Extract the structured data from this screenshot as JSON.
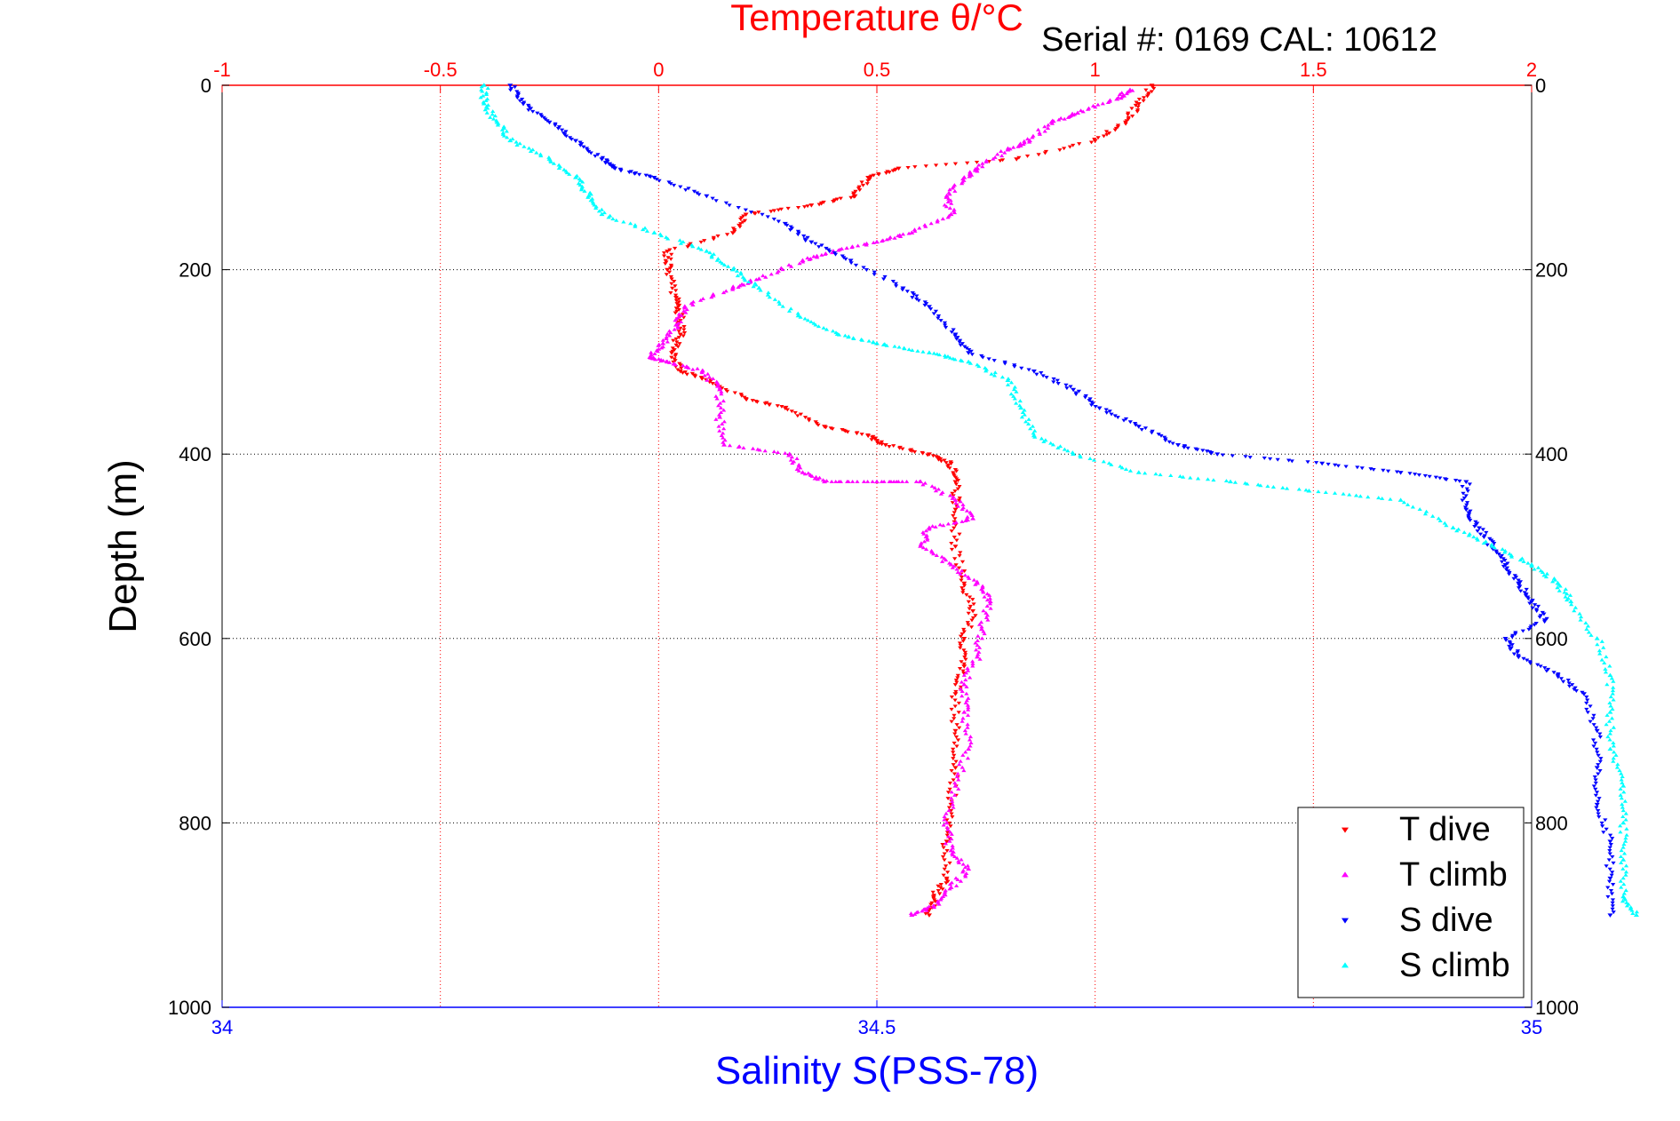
{
  "chart_data": {
    "type": "scatter",
    "title_top": "Temperature θ/°C",
    "annotation": "Serial #: 0169 CAL: 10612",
    "xlabel": "Salinity S(PSS-78)",
    "ylabel": "Depth (m)",
    "temperature_axis": {
      "range": [
        -1,
        2
      ],
      "ticks": [
        -1,
        -0.5,
        0,
        0.5,
        1,
        1.5,
        2
      ],
      "tick_labels": [
        "-1",
        "-0.5",
        "0",
        "0.5",
        "1",
        "1.5",
        "2"
      ]
    },
    "salinity_axis": {
      "range": [
        34,
        35
      ],
      "ticks": [
        34,
        34.5,
        35
      ],
      "tick_labels": [
        "34",
        "34.5",
        "35"
      ]
    },
    "depth_axis": {
      "range": [
        0,
        1000
      ],
      "ticks": [
        0,
        200,
        400,
        600,
        800,
        1000
      ],
      "tick_labels": [
        "0",
        "200",
        "400",
        "600",
        "800",
        "1000"
      ],
      "reversed": true
    },
    "grid": true,
    "legend_position": "bottom-right",
    "colors": {
      "temperature_axis": "#ff0000",
      "salinity_axis": "#0000ff",
      "t_dive": "#ff0000",
      "t_climb": "#ff00ff",
      "s_dive": "#0000ff",
      "s_climb": "#00ffff"
    },
    "series": [
      {
        "name": "T dive",
        "axis": "temperature",
        "marker": "triangle-down",
        "color": "#ff0000",
        "points": [
          [
            1.13,
            0
          ],
          [
            1.1,
            20
          ],
          [
            1.07,
            40
          ],
          [
            1.0,
            60
          ],
          [
            0.82,
            80
          ],
          [
            0.55,
            90
          ],
          [
            0.48,
            100
          ],
          [
            0.45,
            120
          ],
          [
            0.35,
            130
          ],
          [
            0.2,
            140
          ],
          [
            0.17,
            160
          ],
          [
            0.02,
            180
          ],
          [
            0.02,
            200
          ],
          [
            0.04,
            230
          ],
          [
            0.05,
            250
          ],
          [
            0.05,
            270
          ],
          [
            0.03,
            290
          ],
          [
            0.05,
            310
          ],
          [
            0.12,
            320
          ],
          [
            0.2,
            340
          ],
          [
            0.29,
            350
          ],
          [
            0.38,
            370
          ],
          [
            0.48,
            380
          ],
          [
            0.52,
            390
          ],
          [
            0.62,
            400
          ],
          [
            0.67,
            410
          ],
          [
            0.68,
            430
          ],
          [
            0.68,
            460
          ],
          [
            0.68,
            500
          ],
          [
            0.7,
            540
          ],
          [
            0.72,
            570
          ],
          [
            0.7,
            600
          ],
          [
            0.7,
            630
          ],
          [
            0.68,
            660
          ],
          [
            0.68,
            700
          ],
          [
            0.68,
            740
          ],
          [
            0.67,
            780
          ],
          [
            0.66,
            820
          ],
          [
            0.66,
            860
          ],
          [
            0.63,
            880
          ],
          [
            0.62,
            900
          ]
        ]
      },
      {
        "name": "T climb",
        "axis": "temperature",
        "marker": "triangle-up",
        "color": "#ff00ff",
        "points": [
          [
            1.08,
            5
          ],
          [
            1.05,
            15
          ],
          [
            0.96,
            30
          ],
          [
            0.9,
            40
          ],
          [
            0.85,
            60
          ],
          [
            0.8,
            70
          ],
          [
            0.73,
            90
          ],
          [
            0.7,
            100
          ],
          [
            0.66,
            120
          ],
          [
            0.67,
            140
          ],
          [
            0.58,
            160
          ],
          [
            0.5,
            170
          ],
          [
            0.4,
            180
          ],
          [
            0.33,
            190
          ],
          [
            0.23,
            210
          ],
          [
            0.17,
            220
          ],
          [
            0.06,
            240
          ],
          [
            0.04,
            260
          ],
          [
            0.01,
            280
          ],
          [
            -0.02,
            295
          ],
          [
            0.02,
            300
          ],
          [
            0.1,
            310
          ],
          [
            0.14,
            330
          ],
          [
            0.14,
            360
          ],
          [
            0.15,
            390
          ],
          [
            0.3,
            400
          ],
          [
            0.33,
            420
          ],
          [
            0.38,
            430
          ],
          [
            0.5,
            430
          ],
          [
            0.6,
            430
          ],
          [
            0.68,
            450
          ],
          [
            0.72,
            470
          ],
          [
            0.62,
            480
          ],
          [
            0.6,
            500
          ],
          [
            0.67,
            520
          ],
          [
            0.73,
            540
          ],
          [
            0.76,
            560
          ],
          [
            0.74,
            590
          ],
          [
            0.73,
            620
          ],
          [
            0.7,
            650
          ],
          [
            0.7,
            680
          ],
          [
            0.71,
            720
          ],
          [
            0.68,
            760
          ],
          [
            0.66,
            800
          ],
          [
            0.67,
            830
          ],
          [
            0.71,
            850
          ],
          [
            0.67,
            870
          ],
          [
            0.63,
            890
          ],
          [
            0.58,
            900
          ]
        ]
      },
      {
        "name": "S dive",
        "axis": "salinity",
        "marker": "triangle-down",
        "color": "#0000ff",
        "points": [
          [
            34.22,
            0
          ],
          [
            34.23,
            20
          ],
          [
            34.25,
            40
          ],
          [
            34.27,
            60
          ],
          [
            34.29,
            80
          ],
          [
            34.3,
            90
          ],
          [
            34.33,
            100
          ],
          [
            34.37,
            120
          ],
          [
            34.43,
            150
          ],
          [
            34.45,
            170
          ],
          [
            34.48,
            190
          ],
          [
            34.52,
            220
          ],
          [
            34.54,
            240
          ],
          [
            34.56,
            270
          ],
          [
            34.57,
            290
          ],
          [
            34.62,
            310
          ],
          [
            34.65,
            330
          ],
          [
            34.67,
            350
          ],
          [
            34.7,
            370
          ],
          [
            34.73,
            390
          ],
          [
            34.76,
            400
          ],
          [
            34.84,
            410
          ],
          [
            34.9,
            420
          ],
          [
            34.95,
            430
          ],
          [
            34.95,
            460
          ],
          [
            34.96,
            480
          ],
          [
            34.97,
            500
          ],
          [
            34.98,
            520
          ],
          [
            34.99,
            540
          ],
          [
            35.0,
            560
          ],
          [
            35.01,
            580
          ],
          [
            34.98,
            600
          ],
          [
            34.99,
            620
          ],
          [
            35.02,
            640
          ],
          [
            35.04,
            660
          ],
          [
            35.05,
            700
          ],
          [
            35.05,
            740
          ],
          [
            35.05,
            780
          ],
          [
            35.06,
            820
          ],
          [
            35.06,
            860
          ],
          [
            35.06,
            900
          ]
        ]
      },
      {
        "name": "S climb",
        "axis": "salinity",
        "marker": "triangle-up",
        "color": "#00ffff",
        "points": [
          [
            34.2,
            0
          ],
          [
            34.2,
            20
          ],
          [
            34.21,
            40
          ],
          [
            34.22,
            60
          ],
          [
            34.25,
            80
          ],
          [
            34.27,
            100
          ],
          [
            34.28,
            120
          ],
          [
            34.29,
            140
          ],
          [
            34.33,
            160
          ],
          [
            34.37,
            180
          ],
          [
            34.39,
            200
          ],
          [
            34.41,
            220
          ],
          [
            34.44,
            250
          ],
          [
            34.47,
            270
          ],
          [
            34.5,
            280
          ],
          [
            34.54,
            290
          ],
          [
            34.57,
            300
          ],
          [
            34.6,
            320
          ],
          [
            34.61,
            350
          ],
          [
            34.62,
            380
          ],
          [
            34.65,
            400
          ],
          [
            34.7,
            420
          ],
          [
            34.77,
            430
          ],
          [
            34.83,
            440
          ],
          [
            34.9,
            450
          ],
          [
            34.94,
            480
          ],
          [
            34.97,
            500
          ],
          [
            35.0,
            520
          ],
          [
            35.02,
            540
          ],
          [
            35.03,
            560
          ],
          [
            35.05,
            600
          ],
          [
            35.06,
            640
          ],
          [
            35.06,
            680
          ],
          [
            35.06,
            720
          ],
          [
            35.07,
            760
          ],
          [
            35.07,
            800
          ],
          [
            35.07,
            840
          ],
          [
            35.07,
            880
          ],
          [
            35.08,
            900
          ]
        ]
      }
    ],
    "legend": [
      "T dive",
      "T climb",
      "S dive",
      "S climb"
    ]
  }
}
